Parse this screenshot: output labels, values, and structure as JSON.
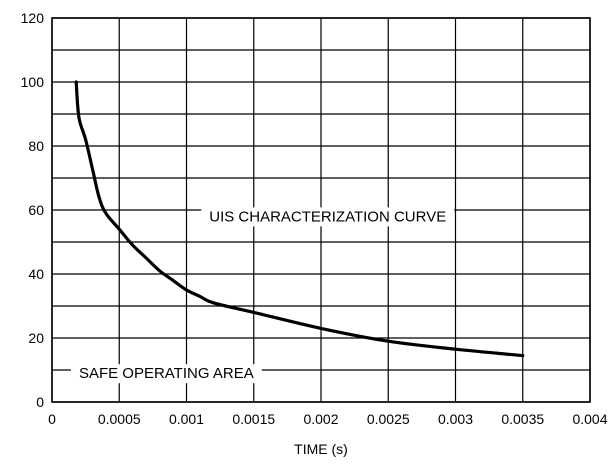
{
  "chart_data": {
    "type": "line",
    "title": "",
    "xlabel": "TIME (s)",
    "ylabel": "",
    "xlim": [
      0,
      0.004
    ],
    "ylim": [
      0,
      120
    ],
    "x_ticks": [
      0,
      0.0005,
      0.001,
      0.0015,
      0.002,
      0.0025,
      0.003,
      0.0035,
      0.004
    ],
    "x_tick_labels": [
      "0",
      "0.0005",
      "0.001",
      "0.0015",
      "0.002",
      "0.0025",
      "0.003",
      "0.0035",
      "0.004"
    ],
    "y_ticks": [
      0,
      20,
      40,
      60,
      80,
      100,
      120
    ],
    "y_tick_labels": [
      "0",
      "20",
      "40",
      "60",
      "80",
      "100",
      "120"
    ],
    "grid": true,
    "x_grid_step": 0.0005,
    "y_grid_step": 10,
    "series": [
      {
        "x": [
          0.00018,
          0.0002,
          0.00025,
          0.0003,
          0.00035,
          0.0004,
          0.0005,
          0.0006,
          0.0007,
          0.0008,
          0.0009,
          0.001,
          0.0011,
          0.0012,
          0.0015,
          0.002,
          0.0025,
          0.003,
          0.0035
        ],
        "y": [
          100,
          89,
          82,
          73,
          64,
          59,
          54,
          49,
          45,
          41,
          38,
          35,
          33,
          31,
          28,
          23,
          19,
          16.5,
          14.5
        ],
        "color": "#000000"
      }
    ],
    "annotations": [
      {
        "text": "UIS CHARACTERIZATION CURVE",
        "x": 0.00205,
        "y": 58
      },
      {
        "text": "SAFE OPERATING AREA",
        "x": 0.00085,
        "y": 9
      }
    ]
  }
}
